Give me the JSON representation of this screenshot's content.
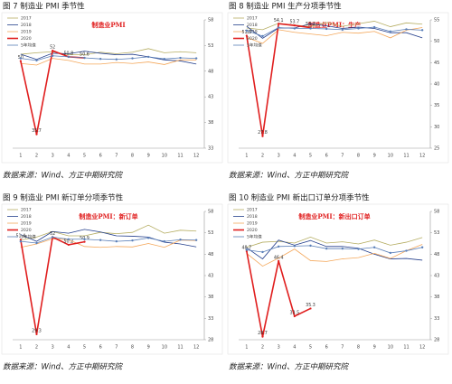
{
  "chart_data": [
    {
      "type": "line",
      "caption": "图 7   制造业 PMI 季节性",
      "title": "制造业PMI",
      "source": "数据来源：Wind、方正中期研究院",
      "categories": [
        "1",
        "2",
        "3",
        "4",
        "5",
        "6",
        "7",
        "8",
        "9",
        "10",
        "11",
        "12"
      ],
      "ylim": [
        33,
        58
      ],
      "yticks": [
        33,
        38,
        43,
        48,
        53,
        58
      ],
      "series": [
        {
          "name": "2017",
          "color": "#b5ad62",
          "values": [
            51.3,
            51.6,
            51.8,
            51.2,
            51.2,
            51.7,
            51.4,
            51.7,
            52.4,
            51.6,
            51.8,
            51.6
          ]
        },
        {
          "name": "2018",
          "color": "#243f8c",
          "values": [
            51.3,
            50.3,
            51.5,
            51.4,
            51.9,
            51.5,
            51.2,
            51.3,
            50.8,
            50.2,
            50.0,
            49.4
          ]
        },
        {
          "name": "2019",
          "color": "#f4a75a",
          "values": [
            49.5,
            49.2,
            50.5,
            50.1,
            49.4,
            49.4,
            49.7,
            49.5,
            49.8,
            49.3,
            50.2,
            50.2
          ]
        },
        {
          "name": "2020",
          "color": "#e01e1e",
          "data_labels": true,
          "values": [
            50,
            35.7,
            52,
            50.8,
            50.6,
            null,
            null,
            null,
            null,
            null,
            null,
            null
          ]
        },
        {
          "name": "5年均值",
          "color": "#5a7fb8",
          "markers": true,
          "values": [
            50.5,
            50.1,
            51.0,
            50.8,
            50.6,
            50.4,
            50.3,
            50.5,
            50.8,
            50.4,
            50.6,
            50.5
          ]
        }
      ]
    },
    {
      "type": "line",
      "caption": "图 8   制造业 PMI 生产分项季节性",
      "title": "制造业PMI：生产",
      "source": "数据来源：Wind、方正中期研究院",
      "categories": [
        "1",
        "2",
        "3",
        "4",
        "5",
        "6",
        "7",
        "8",
        "9",
        "10",
        "11",
        "12"
      ],
      "ylim": [
        25,
        55
      ],
      "yticks": [
        25,
        30,
        35,
        40,
        45,
        50,
        55
      ],
      "series": [
        {
          "name": "2017",
          "color": "#b5ad62",
          "values": [
            53.1,
            52.7,
            54.2,
            53.8,
            53.4,
            54.4,
            53.5,
            54.1,
            54.7,
            53.4,
            54.3,
            54.0
          ]
        },
        {
          "name": "2018",
          "color": "#243f8c",
          "values": [
            53.5,
            50.7,
            53.1,
            53.1,
            54.1,
            53.6,
            53.0,
            53.3,
            53.0,
            52.0,
            52.0,
            50.8
          ]
        },
        {
          "name": "2019",
          "color": "#f4a75a",
          "values": [
            50.9,
            49.5,
            52.7,
            52.1,
            51.7,
            51.3,
            52.1,
            51.9,
            52.3,
            50.8,
            52.6,
            53.2
          ]
        },
        {
          "name": "2020",
          "color": "#e01e1e",
          "data_labels": true,
          "values": [
            51.3,
            27.8,
            54.1,
            53.7,
            53.2,
            null,
            null,
            null,
            null,
            null,
            null,
            null
          ]
        },
        {
          "name": "5年均值",
          "color": "#5a7fb8",
          "markers": true,
          "values": [
            52.5,
            51.2,
            53.2,
            53.0,
            53.0,
            52.9,
            52.7,
            53.0,
            53.3,
            52.3,
            52.8,
            52.6
          ]
        }
      ]
    },
    {
      "type": "line",
      "caption": "图 9   制造业 PMI 新订单分项季节性",
      "title": "制造业PMI：新订单",
      "source": "数据来源：Wind、方正中期研究院",
      "categories": [
        "1",
        "2",
        "3",
        "4",
        "5",
        "6",
        "7",
        "8",
        "9",
        "10",
        "11",
        "12"
      ],
      "ylim": [
        28,
        58
      ],
      "yticks": [
        28,
        33,
        38,
        43,
        48,
        53,
        58
      ],
      "series": [
        {
          "name": "2017",
          "color": "#b5ad62",
          "values": [
            51.3,
            52.0,
            53.3,
            52.3,
            52.3,
            53.1,
            52.8,
            53.1,
            54.8,
            52.9,
            53.6,
            53.4
          ]
        },
        {
          "name": "2018",
          "color": "#243f8c",
          "values": [
            52.6,
            51.0,
            53.3,
            52.9,
            53.8,
            53.2,
            52.3,
            52.2,
            52.0,
            50.8,
            50.4,
            49.7
          ]
        },
        {
          "name": "2019",
          "color": "#f4a75a",
          "values": [
            49.6,
            50.4,
            51.6,
            51.4,
            49.8,
            49.6,
            49.8,
            49.7,
            50.5,
            49.6,
            51.3,
            51.2
          ]
        },
        {
          "name": "2020",
          "color": "#e01e1e",
          "data_labels": true,
          "values": [
            51.4,
            29.3,
            52,
            50.2,
            50.9,
            null,
            null,
            null,
            null,
            null,
            null,
            null
          ]
        },
        {
          "name": "5年均值",
          "color": "#5a7fb8",
          "markers": true,
          "values": [
            51.0,
            50.6,
            52.0,
            51.5,
            51.5,
            51.3,
            51.0,
            51.2,
            51.8,
            51.0,
            51.4,
            51.3
          ]
        }
      ]
    },
    {
      "type": "line",
      "caption": "图 10   制造业 PMI 新出口订单分项季节性",
      "title": "制造业PMI：新出口订单",
      "source": "数据来源：Wind、方正中期研究院",
      "categories": [
        "1",
        "2",
        "3",
        "4",
        "5",
        "6",
        "7",
        "8",
        "9",
        "10",
        "11",
        "12"
      ],
      "ylim": [
        28,
        58
      ],
      "yticks": [
        28,
        33,
        38,
        43,
        48,
        53,
        58
      ],
      "series": [
        {
          "name": "2017",
          "color": "#b5ad62",
          "values": [
            49.6,
            50.8,
            51.0,
            50.6,
            52.0,
            50.6,
            50.9,
            50.4,
            51.3,
            50.1,
            50.8,
            51.9
          ]
        },
        {
          "name": "2018",
          "color": "#243f8c",
          "values": [
            49.5,
            46.9,
            51.3,
            50.1,
            51.2,
            49.8,
            49.8,
            49.4,
            48.0,
            46.9,
            47.0,
            46.6
          ]
        },
        {
          "name": "2019",
          "color": "#f4a75a",
          "values": [
            48.2,
            45.2,
            47.1,
            49.2,
            46.5,
            46.3,
            46.9,
            47.2,
            48.2,
            47.0,
            48.8,
            50.3
          ]
        },
        {
          "name": "2020",
          "color": "#e01e1e",
          "data_labels": true,
          "values": [
            48.7,
            28.7,
            46.4,
            33.5,
            35.3,
            null,
            null,
            null,
            null,
            null,
            null,
            null
          ]
        },
        {
          "name": "5年均值",
          "color": "#5a7fb8",
          "markers": true,
          "values": [
            49.0,
            48.5,
            49.8,
            49.9,
            50.0,
            49.3,
            49.3,
            49.2,
            49.6,
            48.3,
            48.8,
            49.6
          ]
        }
      ]
    }
  ]
}
